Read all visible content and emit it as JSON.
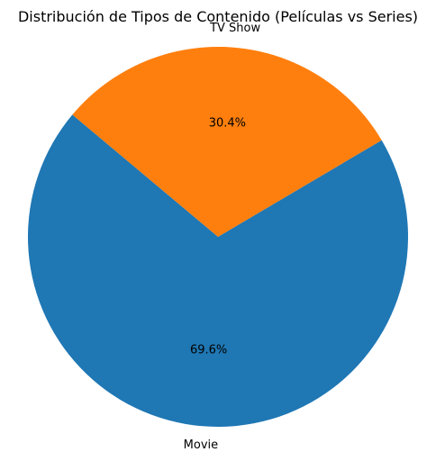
{
  "chart_data": {
    "type": "pie",
    "title": "Distribución de Tipos de Contenido (Películas vs Series)",
    "slices": [
      {
        "label": "Movie",
        "value": 69.6,
        "pct_label": "69.6%",
        "color": "#1f77b4"
      },
      {
        "label": "TV Show",
        "value": 30.4,
        "pct_label": "30.4%",
        "color": "#ff7f0e"
      }
    ],
    "start_angle_deg": 140,
    "direction": "counterclockwise"
  }
}
